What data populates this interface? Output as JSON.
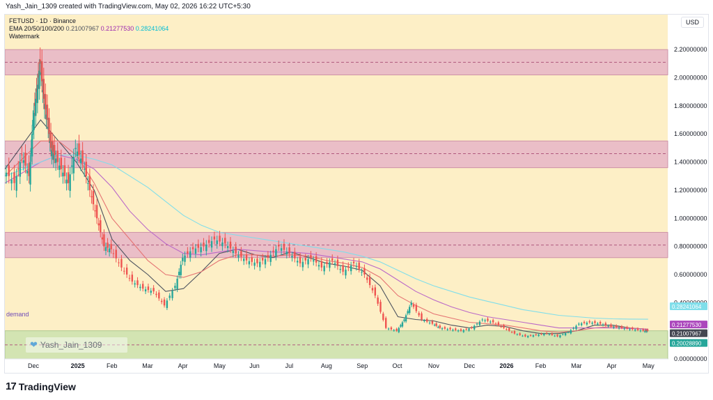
{
  "header": {
    "created_by": "Yash_Jain_1309 created with TradingView.com, May 02, 2026 16:22 UTC+5:30"
  },
  "legend": {
    "symbol_line": "FETUSD · 1D · Binance",
    "ema_label": "EMA 20/50/100/200",
    "ema_value_1": "0.21007967",
    "ema_value_2": "0.21277530",
    "ema_value_3": "0.28241064",
    "watermark": "Watermark"
  },
  "currency": "USD",
  "zone_label": "demand",
  "author_badge": "Yash_Jain_1309",
  "footer_brand": "TradingView",
  "colors": {
    "background_zone": "#fdefc6",
    "supply_zone": "#e9b9c8",
    "demand_zone": "#cfe3b0",
    "candle_up": "#26a69a",
    "candle_down": "#ef5350",
    "ema20": "#4c525e",
    "ema50": "#e57373",
    "ema100": "#ba68c8",
    "ema200": "#80deea"
  },
  "chart_data": {
    "type": "line",
    "title": "FETUSD · 1D · Binance",
    "ylim": [
      0,
      2.3
    ],
    "y_ticks": [
      "2.20000000",
      "2.00000000",
      "1.80000000",
      "1.60000000",
      "1.40000000",
      "1.20000000",
      "1.00000000",
      "0.80000000",
      "0.60000000",
      "0.40000000",
      "0.00000000"
    ],
    "y_tick_values": [
      2.2,
      2.0,
      1.8,
      1.6,
      1.4,
      1.2,
      1.0,
      0.8,
      0.6,
      0.4,
      0.0
    ],
    "x_ticks": [
      "Dec",
      "2025",
      "Feb",
      "Mar",
      "Apr",
      "May",
      "Jun",
      "Jul",
      "Aug",
      "Sep",
      "Oct",
      "Nov",
      "Dec",
      "2026",
      "Feb",
      "Mar",
      "Apr",
      "May"
    ],
    "x_tick_bold": [
      false,
      true,
      false,
      false,
      false,
      false,
      false,
      false,
      false,
      false,
      false,
      false,
      false,
      true,
      false,
      false,
      false,
      false
    ],
    "x_tick_positions": [
      0.8,
      2.0,
      3.0,
      4.0,
      5.0,
      6.0,
      7.0,
      8.0,
      9.0,
      10.0,
      11.0,
      12.0,
      13.0,
      14.0,
      15.0,
      16.0,
      17.0,
      18.0
    ],
    "x_range": [
      0,
      18.55
    ],
    "price_labels": [
      {
        "value": "0.28241064",
        "y": 0.2824,
        "color": "#80deea"
      },
      {
        "value": "0.21277530",
        "y": 0.2128,
        "color": "#ab47bc"
      },
      {
        "value": "0.21007967",
        "y": 0.2101,
        "color": "#434651"
      },
      {
        "value": "0.20028890",
        "y": 0.2003,
        "color": "#26a69a"
      }
    ],
    "zones": [
      {
        "name": "supply-zone-top",
        "low": 2.02,
        "high": 2.2,
        "mid": 2.11
      },
      {
        "name": "supply-zone-mid",
        "low": 1.36,
        "high": 1.55,
        "mid": 1.46
      },
      {
        "name": "supply-zone-low",
        "low": 0.72,
        "high": 0.9,
        "mid": 0.81
      },
      {
        "name": "demand-zone",
        "low": 0.0,
        "high": 0.2,
        "mid": 0.1
      }
    ],
    "price_series": {
      "x": [
        0,
        0.3,
        0.5,
        0.7,
        0.8,
        0.9,
        1.0,
        1.1,
        1.2,
        1.3,
        1.4,
        1.6,
        1.8,
        2.0,
        2.2,
        2.4,
        2.6,
        2.8,
        3.0,
        3.3,
        3.6,
        3.9,
        4.2,
        4.5,
        4.8,
        5.0,
        5.3,
        5.6,
        5.9,
        6.2,
        6.5,
        6.8,
        7.1,
        7.4,
        7.7,
        8.0,
        8.3,
        8.6,
        8.9,
        9.2,
        9.5,
        9.8,
        10.1,
        10.4,
        10.7,
        11.0,
        11.2,
        11.4,
        11.7,
        12.0,
        12.2,
        12.5,
        12.8,
        13.1,
        13.4,
        13.7,
        14.0,
        14.3,
        14.6,
        14.9,
        15.2,
        15.5,
        15.8,
        16.1,
        16.4,
        16.7,
        17.0,
        17.3,
        17.6,
        17.9,
        18.0
      ],
      "y": [
        1.35,
        1.25,
        1.45,
        1.3,
        1.7,
        1.9,
        2.1,
        1.85,
        1.7,
        1.5,
        1.45,
        1.35,
        1.25,
        1.5,
        1.4,
        1.2,
        1.0,
        0.8,
        0.78,
        0.65,
        0.55,
        0.5,
        0.48,
        0.38,
        0.52,
        0.72,
        0.78,
        0.8,
        0.85,
        0.82,
        0.75,
        0.7,
        0.68,
        0.72,
        0.8,
        0.75,
        0.68,
        0.72,
        0.65,
        0.7,
        0.62,
        0.68,
        0.6,
        0.45,
        0.22,
        0.2,
        0.28,
        0.4,
        0.28,
        0.25,
        0.22,
        0.21,
        0.2,
        0.22,
        0.28,
        0.26,
        0.22,
        0.18,
        0.16,
        0.17,
        0.18,
        0.16,
        0.19,
        0.25,
        0.26,
        0.25,
        0.23,
        0.22,
        0.21,
        0.2,
        0.2
      ]
    },
    "series": [
      {
        "name": "EMA 20",
        "x": [
          0,
          1,
          1.5,
          2,
          2.5,
          3,
          3.5,
          4,
          4.5,
          5,
          5.5,
          6,
          6.5,
          7,
          7.5,
          8,
          8.5,
          9,
          9.5,
          10,
          10.5,
          11,
          11.5,
          12,
          12.5,
          13,
          13.5,
          14,
          14.5,
          15,
          15.5,
          16,
          16.5,
          17,
          17.5,
          18
        ],
        "y": [
          1.35,
          1.7,
          1.55,
          1.4,
          1.2,
          0.85,
          0.7,
          0.6,
          0.48,
          0.5,
          0.62,
          0.75,
          0.78,
          0.74,
          0.72,
          0.76,
          0.72,
          0.68,
          0.66,
          0.63,
          0.52,
          0.3,
          0.28,
          0.27,
          0.24,
          0.22,
          0.24,
          0.23,
          0.2,
          0.18,
          0.18,
          0.2,
          0.24,
          0.24,
          0.22,
          0.21
        ]
      },
      {
        "name": "EMA 50",
        "x": [
          0,
          1,
          1.5,
          2,
          2.5,
          3,
          3.5,
          4,
          4.5,
          5,
          5.5,
          6,
          6.5,
          7,
          7.5,
          8,
          8.5,
          9,
          9.5,
          10,
          10.5,
          11,
          11.5,
          12,
          12.5,
          13,
          13.5,
          14,
          14.5,
          15,
          15.5,
          16,
          16.5,
          17,
          17.5,
          18
        ],
        "y": [
          1.3,
          1.55,
          1.55,
          1.45,
          1.25,
          1.0,
          0.85,
          0.7,
          0.6,
          0.58,
          0.62,
          0.7,
          0.74,
          0.74,
          0.73,
          0.74,
          0.73,
          0.7,
          0.68,
          0.65,
          0.58,
          0.45,
          0.38,
          0.32,
          0.29,
          0.26,
          0.25,
          0.24,
          0.22,
          0.2,
          0.19,
          0.2,
          0.22,
          0.23,
          0.22,
          0.21
        ]
      },
      {
        "name": "EMA 100",
        "x": [
          0,
          1,
          1.5,
          2,
          2.5,
          3,
          3.5,
          4,
          4.5,
          5,
          5.5,
          6,
          6.5,
          7,
          7.5,
          8,
          8.5,
          9,
          9.5,
          10,
          10.5,
          11,
          11.5,
          12,
          12.5,
          13,
          13.5,
          14,
          14.5,
          15,
          15.5,
          16,
          16.5,
          17,
          17.5,
          18
        ],
        "y": [
          1.25,
          1.4,
          1.45,
          1.42,
          1.35,
          1.22,
          1.05,
          0.92,
          0.82,
          0.75,
          0.74,
          0.76,
          0.78,
          0.77,
          0.76,
          0.76,
          0.75,
          0.73,
          0.71,
          0.69,
          0.64,
          0.56,
          0.48,
          0.42,
          0.37,
          0.33,
          0.3,
          0.28,
          0.26,
          0.24,
          0.22,
          0.22,
          0.22,
          0.22,
          0.215,
          0.21
        ]
      },
      {
        "name": "EMA 200",
        "x": [
          0,
          1,
          1.5,
          2,
          2.5,
          3,
          3.5,
          4,
          4.5,
          5,
          5.5,
          6,
          6.5,
          7,
          7.5,
          8,
          8.5,
          9,
          9.5,
          10,
          10.5,
          11,
          11.5,
          12,
          12.5,
          13,
          13.5,
          14,
          14.5,
          15,
          15.5,
          16,
          16.5,
          17,
          17.5,
          18
        ],
        "y": [
          1.3,
          1.4,
          1.45,
          1.45,
          1.42,
          1.38,
          1.3,
          1.22,
          1.12,
          1.02,
          0.95,
          0.9,
          0.88,
          0.86,
          0.84,
          0.82,
          0.8,
          0.78,
          0.76,
          0.73,
          0.69,
          0.63,
          0.57,
          0.52,
          0.48,
          0.44,
          0.41,
          0.38,
          0.35,
          0.33,
          0.31,
          0.3,
          0.29,
          0.285,
          0.283,
          0.282
        ]
      }
    ]
  }
}
